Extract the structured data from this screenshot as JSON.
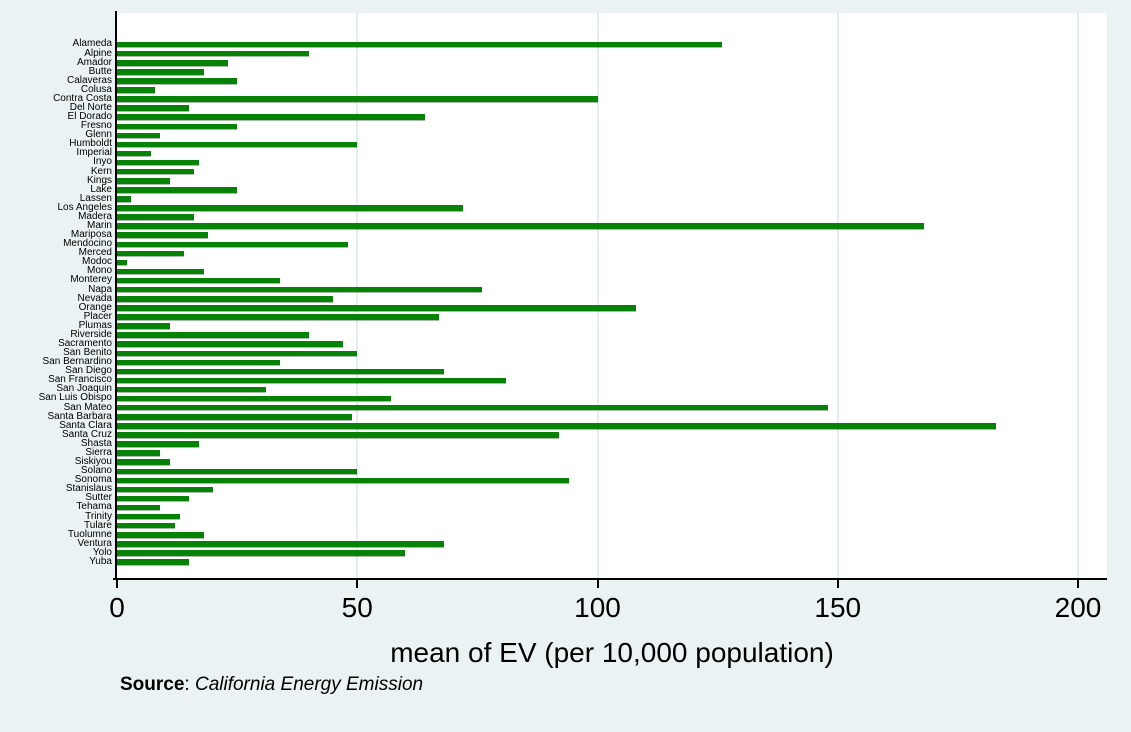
{
  "chart_data": {
    "type": "bar",
    "orientation": "horizontal",
    "title": "",
    "xlabel": "mean of EV (per 10,000 population)",
    "ylabel": "",
    "xlim": [
      0,
      206
    ],
    "x_ticks": [
      0,
      50,
      100,
      150,
      200
    ],
    "grid": true,
    "legend": "none",
    "bar_color": "#068306",
    "categories": [
      "Alameda",
      "Alpine",
      "Amador",
      "Butte",
      "Calaveras",
      "Colusa",
      "Contra Costa",
      "Del Norte",
      "El Dorado",
      "Fresno",
      "Glenn",
      "Humboldt",
      "Imperial",
      "Inyo",
      "Kern",
      "Kings",
      "Lake",
      "Lassen",
      "Los Angeles",
      "Madera",
      "Marin",
      "Mariposa",
      "Mendocino",
      "Merced",
      "Modoc",
      "Mono",
      "Monterey",
      "Napa",
      "Nevada",
      "Orange",
      "Placer",
      "Plumas",
      "Riverside",
      "Sacramento",
      "San Benito",
      "San Bernardino",
      "San Diego",
      "San Francisco",
      "San Joaquin",
      "San Luis Obispo",
      "San Mateo",
      "Santa Barbara",
      "Santa Clara",
      "Santa Cruz",
      "Shasta",
      "Sierra",
      "Siskiyou",
      "Solano",
      "Sonoma",
      "Stanislaus",
      "Sutter",
      "Tehama",
      "Trinity",
      "Tulare",
      "Tuolumne",
      "Ventura",
      "Yolo",
      "Yuba"
    ],
    "values": [
      126,
      40,
      23,
      18,
      25,
      8,
      100,
      15,
      64,
      25,
      9,
      50,
      7,
      17,
      16,
      11,
      25,
      3,
      72,
      16,
      168,
      19,
      48,
      14,
      2,
      18,
      34,
      76,
      45,
      108,
      67,
      11,
      40,
      47,
      50,
      34,
      68,
      81,
      31,
      57,
      148,
      49,
      183,
      92,
      17,
      9,
      11,
      50,
      94,
      20,
      15,
      9,
      13,
      12,
      18,
      68,
      60,
      15
    ]
  },
  "note": {
    "bold": "Source",
    "separator": ": ",
    "italic": "California Energy Emission"
  },
  "colors": {
    "background": "#eaf2f3",
    "plot_background": "#ffffff",
    "gridline": "#e2edee",
    "axis": "#000000",
    "bar": "#068306"
  }
}
